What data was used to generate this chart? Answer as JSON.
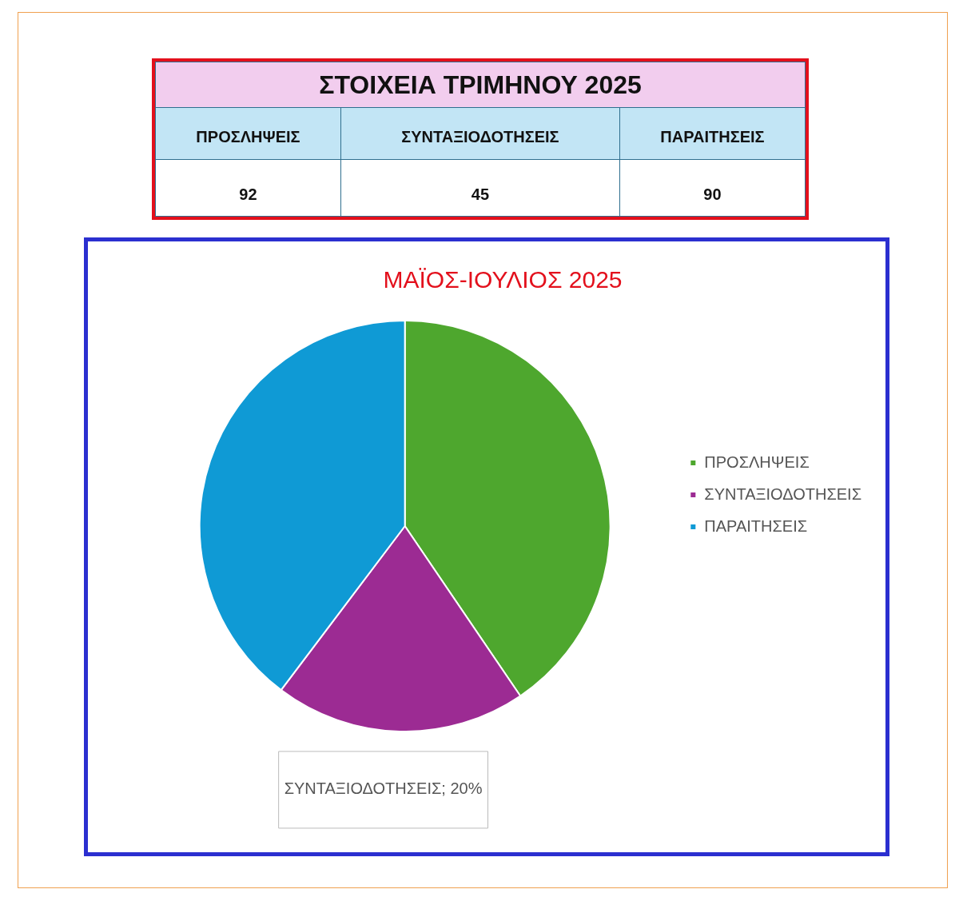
{
  "chart_data": [
    {
      "type": "other",
      "title": "ΣΤΟΙΧΕΙΑ ΤΡΙΜΗΝΟΥ 2025",
      "categories": [
        "ΠΡΟΣΛΗΨΕΙΣ",
        "ΣΥΝΤΑΞΙΟΔΟΤΗΣΕΙΣ",
        "ΠΑΡΑΙΤΗΣΕΙΣ"
      ],
      "values": [
        92,
        45,
        90
      ],
      "data_labels": true
    },
    {
      "type": "pie",
      "title": "ΜΑΪΟΣ-ΙΟΥΛΙΟΣ 2025",
      "categories": [
        "ΠΡΟΣΛΗΨΕΙΣ",
        "ΣΥΝΤΑΞΙΟΔΟΤΗΣΕΙΣ",
        "ΠΑΡΑΙΤΗΣΕΙΣ"
      ],
      "values": [
        40.5,
        19.8,
        39.7
      ],
      "colors": [
        "#4ea72e",
        "#9c2b93",
        "#0f9ad5"
      ],
      "value_labels": [
        null,
        "ΣΥΝΤΑΞΙΟΔΟΤΗΣΕΙΣ; 20%",
        null
      ],
      "legend": "right"
    }
  ]
}
